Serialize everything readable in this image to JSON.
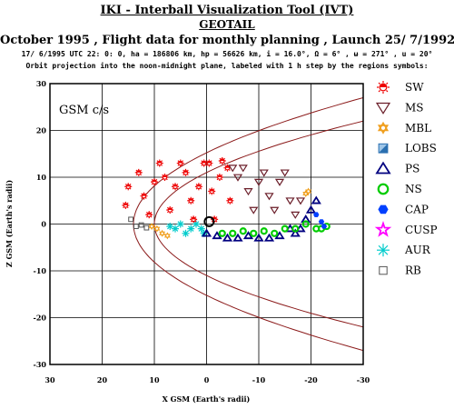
{
  "header": {
    "title": "IKI - Interball Visualization Tool (IVT)",
    "mission": "GEOTAIL",
    "subtitle": "October  1995 ,  Flight data for monthly planning ,   Launch 25/ 7/1992",
    "orbit_params": "17/ 6/1995 UTC 22: 0: 0, ha = 186806 km, hp =  56626 km, i = 16.0°, Ω =   6° , ω = 271° , u =  20°",
    "description": "Orbit projection into the noon-midnight plane, labeled with 1 h step by the regions symbols:"
  },
  "chart_data": {
    "type": "scatter",
    "title": "",
    "frame_label": "GSM c/s",
    "xlabel": "X GSM (Earth's radii)",
    "ylabel": "Z GSM (Earth's radii)",
    "xlim": [
      30,
      -30
    ],
    "ylim": [
      -30,
      30
    ],
    "xticks": [
      30,
      20,
      10,
      0,
      -10,
      -20,
      -30
    ],
    "yticks": [
      30,
      20,
      10,
      0,
      -10,
      -20,
      -30
    ],
    "xtick_labels": [
      "30",
      "20",
      "10",
      "0",
      "-10",
      "-20",
      "-30"
    ],
    "ytick_labels": [
      "30",
      "20",
      "10",
      "0",
      "-10",
      "-20",
      "-30"
    ],
    "grid": true,
    "legend_position": "right",
    "regions": [
      {
        "code": "SW",
        "color": "#ee0000",
        "marker": "sun"
      },
      {
        "code": "MS",
        "color": "#6b1f2a",
        "marker": "triangle-down"
      },
      {
        "code": "MBL",
        "color": "#f0a020",
        "marker": "star6"
      },
      {
        "code": "LOBS",
        "color": "#2a6fb0",
        "marker": "square-split"
      },
      {
        "code": "PS",
        "color": "#000080",
        "marker": "triangle-up"
      },
      {
        "code": "NS",
        "color": "#00cc00",
        "marker": "circle"
      },
      {
        "code": "CAP",
        "color": "#0040ff",
        "marker": "hexagon"
      },
      {
        "code": "CUSP",
        "color": "#ff00ff",
        "marker": "star5"
      },
      {
        "code": "AUR",
        "color": "#00cccc",
        "marker": "asterisk"
      },
      {
        "code": "RB",
        "color": "#555555",
        "marker": "square"
      }
    ],
    "boundaries": {
      "color": "#8b1a1a",
      "bow_shock": {
        "nose_x": 14,
        "flank_z_at_x_minus30": 27
      },
      "magnetopause": {
        "nose_x": 10,
        "flank_z_at_x_minus30": 22
      }
    },
    "earth": {
      "x": 0,
      "z": 0,
      "radius_re": 1
    },
    "series": [
      {
        "region": "RB",
        "points": [
          [
            14.5,
            1
          ],
          [
            13.5,
            -0.5
          ],
          [
            12.5,
            -0.2
          ],
          [
            11.5,
            -0.8
          ]
        ]
      },
      {
        "region": "MBL",
        "points": [
          [
            10.5,
            -0.5
          ],
          [
            9.5,
            -1
          ],
          [
            8.5,
            -2
          ],
          [
            7.5,
            -2.5
          ],
          [
            -19,
            6.5
          ],
          [
            -19.5,
            7
          ]
        ]
      },
      {
        "region": "AUR",
        "points": [
          [
            7,
            -0.5
          ],
          [
            6,
            -1
          ],
          [
            5,
            0
          ],
          [
            4,
            -2
          ],
          [
            3,
            -1
          ],
          [
            2,
            0
          ],
          [
            1,
            -1
          ],
          [
            0.5,
            -2
          ]
        ]
      },
      {
        "region": "SW",
        "points": [
          [
            15.5,
            4
          ],
          [
            15,
            8
          ],
          [
            13,
            11
          ],
          [
            12,
            6
          ],
          [
            11,
            2
          ],
          [
            10,
            9
          ],
          [
            9,
            13
          ],
          [
            8,
            10
          ],
          [
            7,
            3
          ],
          [
            6,
            8
          ],
          [
            5,
            13
          ],
          [
            4,
            11
          ],
          [
            3,
            5
          ],
          [
            2.5,
            1
          ],
          [
            1.5,
            8
          ],
          [
            0.5,
            13
          ],
          [
            -0.5,
            13
          ],
          [
            -1,
            7
          ],
          [
            -1.5,
            1
          ],
          [
            -2.5,
            10
          ],
          [
            -3,
            13.5
          ],
          [
            -4,
            12
          ],
          [
            -4.5,
            5
          ]
        ]
      },
      {
        "region": "MS",
        "points": [
          [
            -5,
            12
          ],
          [
            -6,
            10
          ],
          [
            -7,
            12
          ],
          [
            -8,
            7
          ],
          [
            -9,
            3
          ],
          [
            -10,
            9
          ],
          [
            -11,
            11
          ],
          [
            -12,
            6
          ],
          [
            -13,
            3
          ],
          [
            -14,
            9
          ],
          [
            -15,
            11
          ],
          [
            -16,
            5
          ],
          [
            -17,
            2
          ],
          [
            -18,
            5
          ]
        ]
      },
      {
        "region": "PS",
        "points": [
          [
            0,
            -2
          ],
          [
            -2,
            -2.5
          ],
          [
            -4,
            -3
          ],
          [
            -6,
            -3
          ],
          [
            -8,
            -2.5
          ],
          [
            -10,
            -3
          ],
          [
            -12,
            -3
          ],
          [
            -14,
            -2.5
          ],
          [
            -16,
            -1
          ],
          [
            -17,
            -2
          ],
          [
            -18,
            -1
          ],
          [
            -19,
            1
          ],
          [
            -20,
            3
          ],
          [
            -21,
            5
          ]
        ]
      },
      {
        "region": "NS",
        "points": [
          [
            -3,
            -2
          ],
          [
            -5,
            -2
          ],
          [
            -7,
            -1.5
          ],
          [
            -9,
            -2
          ],
          [
            -11,
            -1.5
          ],
          [
            -13,
            -2
          ],
          [
            -15,
            -1
          ],
          [
            -17,
            -1
          ],
          [
            -19,
            0
          ],
          [
            -21,
            -1
          ],
          [
            -22,
            -1
          ],
          [
            -23,
            -0.5
          ]
        ]
      },
      {
        "region": "CAP",
        "points": [
          [
            -21,
            2
          ],
          [
            -22,
            0.5
          ],
          [
            -22.5,
            -0.5
          ]
        ]
      }
    ],
    "current_position": {
      "x": -0.5,
      "z": 0.5
    }
  }
}
